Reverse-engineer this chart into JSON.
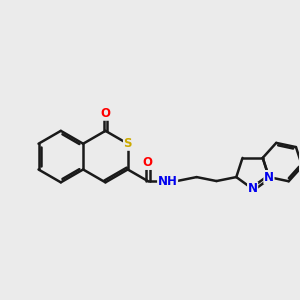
{
  "bg_color": "#ebebeb",
  "bond_color": "#1a1a1a",
  "bond_width": 1.8,
  "atom_colors": {
    "O": "#ff0000",
    "S": "#ccaa00",
    "N": "#0000ee",
    "C": "#1a1a1a"
  },
  "font_size": 8.5,
  "fig_bg": "#ebebeb"
}
